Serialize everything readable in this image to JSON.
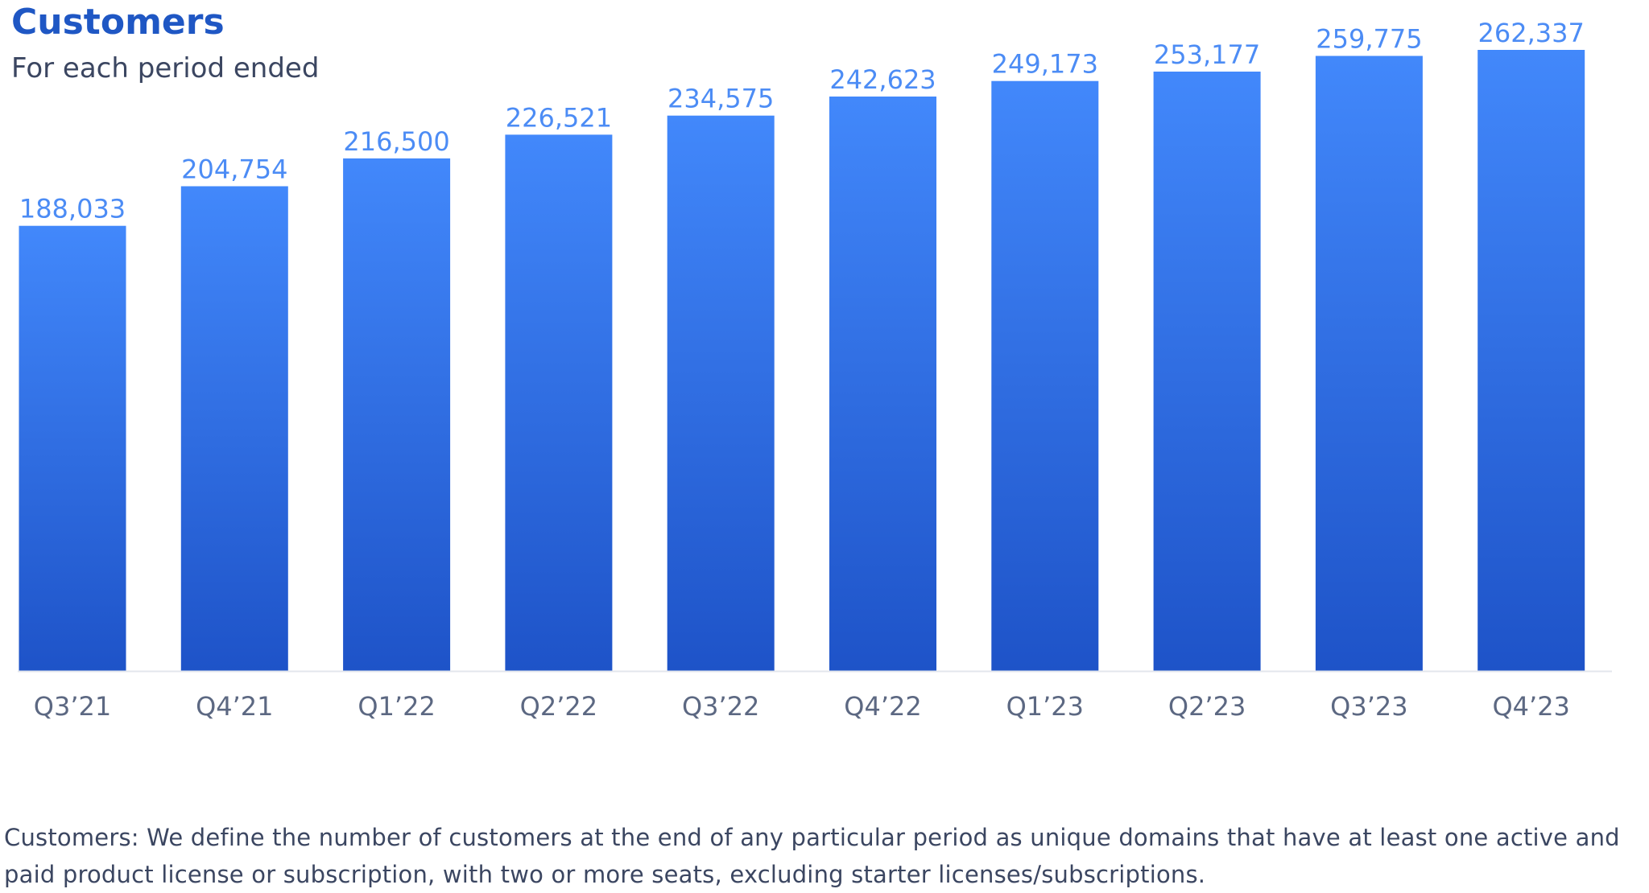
{
  "header": {
    "title": "Customers",
    "subtitle": "For each period ended"
  },
  "footnote": "Customers: We define the number of customers at the end of any particular period as unique domains that have at least one active and paid product license or subscription, with two or more seats, excluding starter licenses/subscriptions.",
  "colors": {
    "bar_top": "#4288fb",
    "bar_bottom": "#1e53c8",
    "value_label": "#4c8cf5",
    "category_label": "#5c6882",
    "title": "#1f57c4",
    "axis": "#e3e6ec"
  },
  "chart_data": {
    "type": "bar",
    "title": "Customers",
    "subtitle": "For each period ended",
    "categories": [
      "Q3’21",
      "Q4’21",
      "Q1’22",
      "Q2’22",
      "Q3’22",
      "Q4’22",
      "Q1’23",
      "Q2’23",
      "Q3’23",
      "Q4’23"
    ],
    "values": [
      188033,
      204754,
      216500,
      226521,
      234575,
      242623,
      249173,
      253177,
      259775,
      262337
    ],
    "value_labels": [
      "188,033",
      "204,754",
      "216,500",
      "226,521",
      "234,575",
      "242,623",
      "249,173",
      "253,177",
      "259,775",
      "262,337"
    ],
    "xlabel": "",
    "ylabel": "",
    "ylim": [
      0,
      262337
    ],
    "grid": false,
    "legend": "none"
  }
}
